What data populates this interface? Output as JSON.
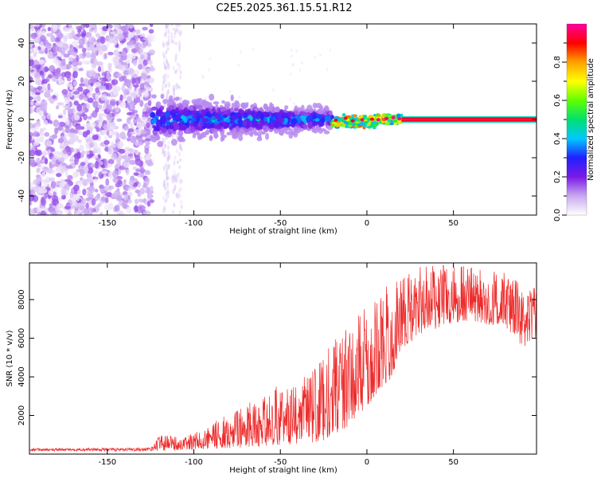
{
  "title": "C2E5.2025.361.15.51.R12",
  "chart_data": [
    {
      "type": "heatmap",
      "title": "C2E5.2025.361.15.51.R12",
      "xlabel": "Height of straight line (km)",
      "ylabel": "Frequency (Hz)",
      "xlim": [
        -195,
        98
      ],
      "ylim": [
        -50,
        50
      ],
      "xticks": [
        -150,
        -100,
        -50,
        0,
        50
      ],
      "xtick_labels": [
        "-150",
        "-100",
        "-50",
        "0",
        "50"
      ],
      "yticks": [
        -40,
        -20,
        0,
        20,
        40
      ],
      "ytick_labels": [
        "-40",
        "-20",
        "0",
        "20",
        "40"
      ],
      "regions": [
        {
          "name": "noise",
          "x_range": [
            -195,
            -124
          ],
          "f_range": [
            -50,
            50
          ],
          "amplitude": 0.1
        },
        {
          "name": "sparse-noise",
          "x_range": [
            -124,
            -105
          ],
          "f_range": [
            -50,
            50
          ],
          "amplitude": 0.05
        },
        {
          "name": "broad-signal",
          "x_range": [
            -124,
            -20
          ],
          "f_halfwidth": 8,
          "amplitude": 0.25
        },
        {
          "name": "narrow-signal",
          "x_range": [
            -20,
            20
          ],
          "f_halfwidth": 3,
          "amplitude": 0.6
        },
        {
          "name": "steady-line",
          "x_range": [
            20,
            98
          ],
          "frequency": 0,
          "amplitude": 0.95
        }
      ],
      "colorbar": {
        "label": "Normalized spectral amplitude",
        "range": [
          0,
          1
        ],
        "ticks": [
          0.0,
          0.2,
          0.4,
          0.6,
          0.8
        ],
        "tick_labels": [
          "0.0",
          "0.2",
          "0.4",
          "0.6",
          "0.8"
        ],
        "colors": [
          "#ffffff",
          "#c9a8f0",
          "#7a1ae6",
          "#2020ff",
          "#00c8ff",
          "#00e070",
          "#60ff00",
          "#ffff00",
          "#ffa000",
          "#ff0000",
          "#ff00a0"
        ]
      }
    },
    {
      "type": "line",
      "xlabel": "Height of straight line (km)",
      "ylabel": "SNR (10 * v/v)",
      "xlim": [
        -195,
        98
      ],
      "ylim": [
        0,
        9900
      ],
      "xticks": [
        -150,
        -100,
        -50,
        0,
        50
      ],
      "xtick_labels": [
        "-150",
        "-100",
        "-50",
        "0",
        "50"
      ],
      "yticks": [
        2000,
        4000,
        6000,
        8000
      ],
      "ytick_labels": [
        "2000",
        "4000",
        "6000",
        "8000"
      ],
      "color": "#ee2a2a",
      "envelope": {
        "x": [
          -195,
          -125,
          -120,
          -110,
          -100,
          -90,
          -80,
          -70,
          -60,
          -50,
          -40,
          -30,
          -25,
          -20,
          -15,
          -10,
          -5,
          0,
          5,
          10,
          15,
          20,
          30,
          40,
          50,
          60,
          70,
          80,
          90,
          98
        ],
        "min": [
          150,
          150,
          160,
          180,
          220,
          260,
          300,
          350,
          400,
          450,
          500,
          600,
          700,
          1000,
          1200,
          1500,
          2000,
          2500,
          3000,
          3500,
          4000,
          5500,
          6000,
          6500,
          6800,
          6900,
          6700,
          6600,
          5500,
          6000
        ],
        "max": [
          300,
          330,
          1000,
          900,
          1100,
          1600,
          2200,
          2600,
          3200,
          3600,
          3700,
          4500,
          5000,
          6000,
          6700,
          7000,
          7300,
          7600,
          8200,
          8600,
          9000,
          9400,
          9700,
          9800,
          9800,
          9700,
          9500,
          9400,
          9000,
          8600
        ]
      }
    }
  ]
}
